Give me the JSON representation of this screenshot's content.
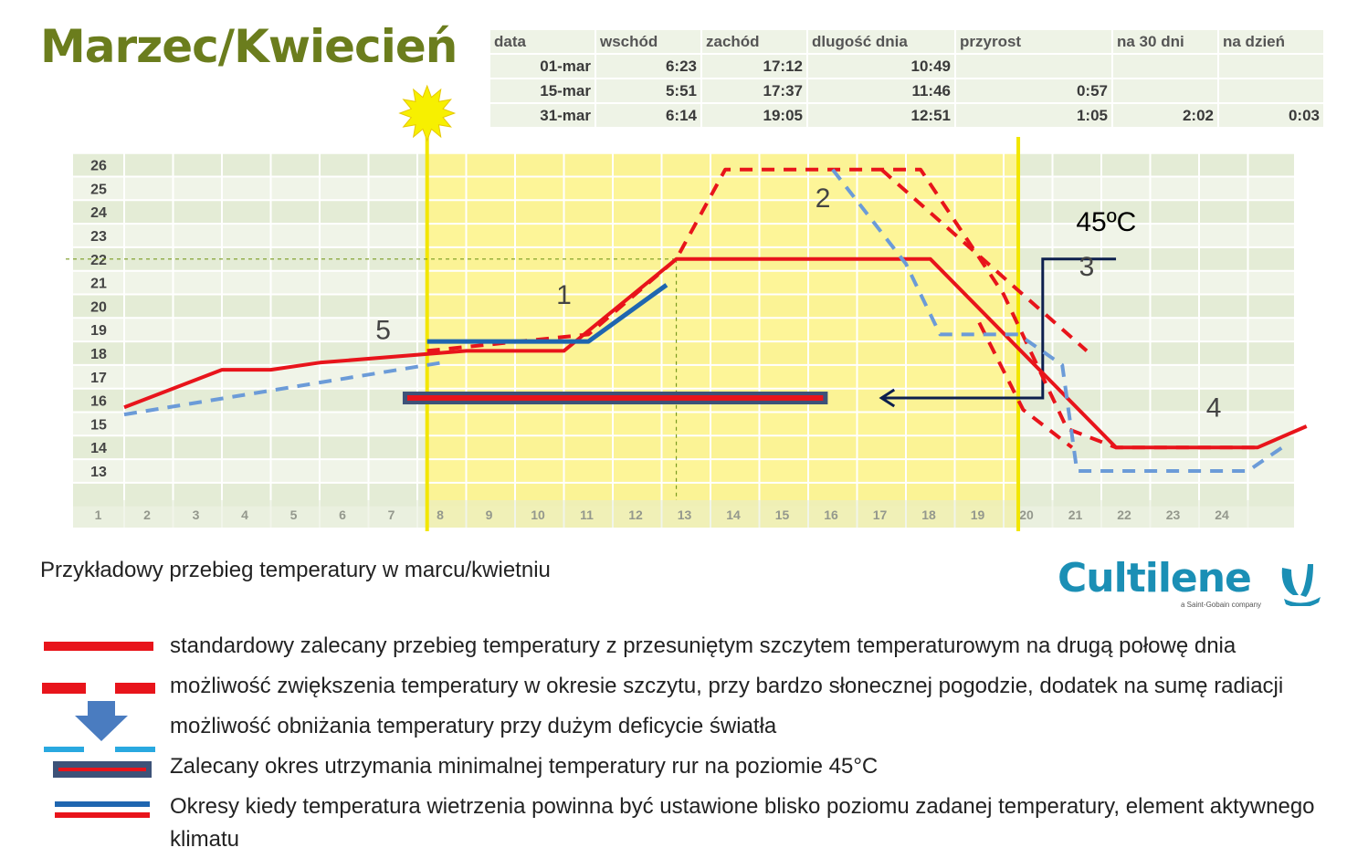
{
  "title": "Marzec/Kwiecień",
  "info_table": {
    "headers": [
      "data",
      "wschód",
      "zachód",
      "dlugość dnia",
      "przyrost",
      "na 30 dni",
      "na dzień"
    ],
    "rows": [
      [
        "01-mar",
        "6:23",
        "17:12",
        "10:49",
        "",
        "",
        ""
      ],
      [
        "15-mar",
        "5:51",
        "17:37",
        "11:46",
        "0:57",
        "",
        ""
      ],
      [
        "31-mar",
        "6:14",
        "19:05",
        "12:51",
        "1:05",
        "2:02",
        "0:03"
      ]
    ]
  },
  "chart_data": {
    "type": "line",
    "x_ticks": [
      1,
      2,
      3,
      4,
      5,
      6,
      7,
      8,
      9,
      10,
      11,
      12,
      13,
      14,
      15,
      16,
      17,
      18,
      19,
      20,
      21,
      22,
      23,
      24
    ],
    "y_ticks": [
      13,
      14,
      15,
      16,
      17,
      18,
      19,
      20,
      21,
      22,
      23,
      24,
      25,
      26
    ],
    "xlim": [
      0,
      24.2
    ],
    "ylim": [
      12,
      26.5
    ],
    "daylight_span": [
      6.2,
      18.3
    ],
    "reference_line": {
      "x": 11.3,
      "y": 22
    },
    "series": [
      {
        "style": "red-solid",
        "color": "#e8141b",
        "points": [
          [
            0,
            15.7
          ],
          [
            2,
            17.3
          ],
          [
            3,
            17.3
          ],
          [
            4,
            17.6
          ],
          [
            7,
            18.1
          ],
          [
            9,
            18.1
          ],
          [
            11.3,
            22
          ],
          [
            16.5,
            22
          ],
          [
            20.3,
            14
          ],
          [
            23.2,
            14
          ],
          [
            24.2,
            14.9
          ]
        ]
      },
      {
        "style": "red-dashed",
        "color": "#e8141b",
        "points": [
          [
            6.2,
            18.1
          ],
          [
            9.5,
            18.8
          ],
          [
            11.3,
            22
          ],
          [
            12.3,
            25.8
          ],
          [
            16.3,
            25.8
          ],
          [
            18,
            20.5
          ],
          [
            19.3,
            14.8
          ],
          [
            20.3,
            14
          ],
          [
            23.2,
            14
          ]
        ]
      },
      {
        "style": "red-dashed",
        "color": "#e8141b",
        "points": [
          [
            15.5,
            25.8
          ],
          [
            19.7,
            18.1
          ]
        ]
      },
      {
        "style": "red-dashed",
        "color": "#e8141b",
        "points": [
          [
            17.5,
            19.3
          ],
          [
            18.4,
            15.6
          ],
          [
            19.4,
            14
          ]
        ]
      },
      {
        "style": "blue-dashed",
        "color": "#6b9bd8",
        "points": [
          [
            0,
            15.4
          ],
          [
            6.5,
            17.6
          ]
        ]
      },
      {
        "style": "blue-dashed",
        "color": "#6b9bd8",
        "points": [
          [
            14.5,
            25.8
          ],
          [
            16,
            21.8
          ],
          [
            16.7,
            18.8
          ],
          [
            18.3,
            18.8
          ],
          [
            19.2,
            17.5
          ],
          [
            19.5,
            13
          ],
          [
            23,
            13
          ],
          [
            23.7,
            14
          ]
        ]
      },
      {
        "style": "blue-solid",
        "color": "#1f66b0",
        "points": [
          [
            6.2,
            18.5
          ],
          [
            9.5,
            18.5
          ],
          [
            10.7,
            20.3
          ],
          [
            11.1,
            20.9
          ]
        ]
      }
    ],
    "min_pipe_bar": {
      "x_start": 5.7,
      "x_end": 14.4,
      "y": 16.1
    },
    "arrow_path": [
      [
        20.3,
        22
      ],
      [
        18.8,
        22
      ],
      [
        18.8,
        16.1
      ],
      [
        15.5,
        16.1
      ]
    ],
    "annotations": [
      {
        "text": "1",
        "x": 9,
        "y": 20.1
      },
      {
        "text": "2",
        "x": 14.3,
        "y": 24.2
      },
      {
        "text": "3",
        "x": 19.7,
        "y": 21.3
      },
      {
        "text": "4",
        "x": 22.3,
        "y": 15.3
      },
      {
        "text": "5",
        "x": 5.3,
        "y": 18.6
      },
      {
        "text": "45ºC",
        "x": 20.1,
        "y": 23.2
      }
    ]
  },
  "subtitle": "Przykładowy przebieg temperatury w marcu/kwietniu",
  "logo": {
    "name": "Cultilene",
    "tagline": "a Saint-Gobain company"
  },
  "legend": [
    {
      "symbol": "red-solid-line",
      "text": "standardowy zalecany przebieg temperatury z przesuniętym szczytem temperaturowym na drugą połowę dnia"
    },
    {
      "symbol": "red-dashed-line",
      "text": "możliwość zwiększenia temperatury w okresie szczytu, przy bardzo słonecznej pogodzie, dodatek na sumę radiacji"
    },
    {
      "symbol": "blue-arrow-dashed-line",
      "text": "możliwość obniżania temperatury przy dużym deficycie światła"
    },
    {
      "symbol": "pipe-bar",
      "text": "Zalecany okres utrzymania minimalnej temperatury rur na poziomie 45°C"
    },
    {
      "symbol": "blue-red-double-line",
      "text": "Okresy kiedy temperatura wietrzenia powinna być ustawione blisko poziomu zadanej temperatury, element aktywnego klimatu"
    }
  ]
}
